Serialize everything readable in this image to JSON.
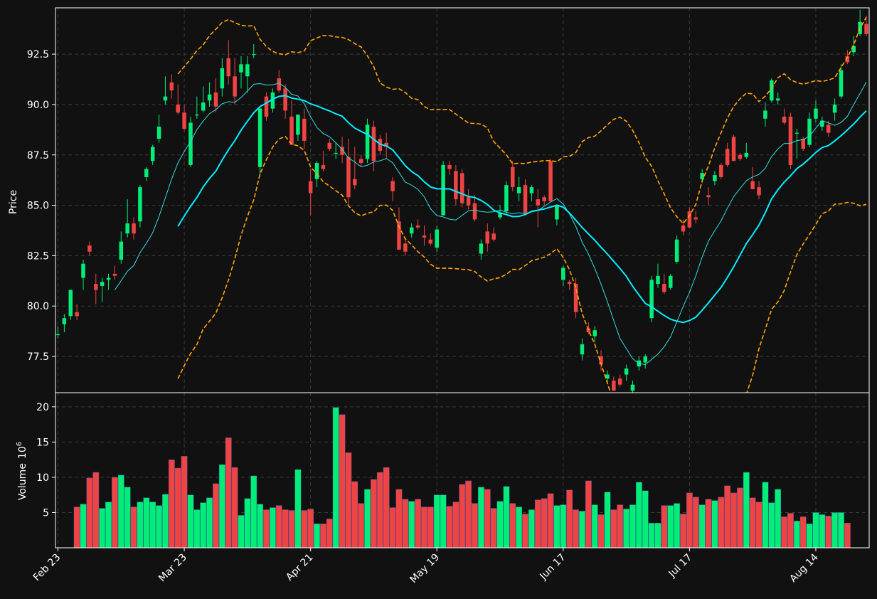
{
  "chart_data": {
    "type": "candlestick",
    "price_axis": {
      "label": "Price",
      "ylim": [
        75.7,
        94.8
      ],
      "ticks": [
        77.5,
        80.0,
        82.5,
        85.0,
        87.5,
        90.0,
        92.5
      ],
      "tick_labels": [
        "77.5",
        "80.0",
        "82.5",
        "85.0",
        "87.5",
        "90.0",
        "92.5"
      ]
    },
    "volume_axis": {
      "label": "Volume",
      "exponent": "6",
      "ylim": [
        0,
        22
      ],
      "ticks": [
        5,
        10,
        15,
        20
      ],
      "tick_labels": [
        "5",
        "10",
        "15",
        "20"
      ]
    },
    "x_axis": {
      "tick_labels": [
        "Feb 23",
        "Mar 23",
        "Apr 21",
        "May 19",
        "Jun 17",
        "Jul 17",
        "Aug 14"
      ],
      "tick_index": [
        0,
        20,
        40,
        60,
        80,
        100,
        120
      ]
    },
    "grid": true,
    "colors": {
      "background": "#111111",
      "up": "#00ee77",
      "down": "#ee4444",
      "sma_fast": "#33dddd",
      "sma_slow": "#00eeff",
      "bands": "#ffa500",
      "axis": "#ffffff",
      "grid": "#3a3a3a"
    },
    "candles_ohlc": [
      [
        78.6,
        79.0,
        78.4,
        78.6
      ],
      [
        79.1,
        79.6,
        78.7,
        79.4
      ],
      [
        79.5,
        80.8,
        79.3,
        80.8
      ],
      [
        79.7,
        80.1,
        79.3,
        79.5
      ],
      [
        81.4,
        82.3,
        80.8,
        82.1
      ],
      [
        83.0,
        83.2,
        82.5,
        82.7
      ],
      [
        81.1,
        81.6,
        80.1,
        80.8
      ],
      [
        81.0,
        81.4,
        80.2,
        81.2
      ],
      [
        81.3,
        81.6,
        80.8,
        81.4
      ],
      [
        81.6,
        82.0,
        81.3,
        81.5
      ],
      [
        82.3,
        83.7,
        82.1,
        83.2
      ],
      [
        83.6,
        85.3,
        83.4,
        84.1
      ],
      [
        84.1,
        84.4,
        83.3,
        83.6
      ],
      [
        84.2,
        86.0,
        83.9,
        85.9
      ],
      [
        86.4,
        86.9,
        86.2,
        86.8
      ],
      [
        87.2,
        88.0,
        87.0,
        87.9
      ],
      [
        88.3,
        89.5,
        88.1,
        88.9
      ],
      [
        90.2,
        91.4,
        90.0,
        90.4
      ],
      [
        91.1,
        91.5,
        90.3,
        90.7
      ],
      [
        90.0,
        91.0,
        89.5,
        89.6
      ],
      [
        89.6,
        90.0,
        88.7,
        88.8
      ],
      [
        87.0,
        89.4,
        86.9,
        89.1
      ],
      [
        89.5,
        90.4,
        89.3,
        89.5
      ],
      [
        89.7,
        90.9,
        89.6,
        90.1
      ],
      [
        90.2,
        91.1,
        89.9,
        90.5
      ],
      [
        90.6,
        91.3,
        89.6,
        89.9
      ],
      [
        90.8,
        92.3,
        90.4,
        91.8
      ],
      [
        92.3,
        93.2,
        91.0,
        91.4
      ],
      [
        91.4,
        92.3,
        90.0,
        90.4
      ],
      [
        91.6,
        92.4,
        90.8,
        92.0
      ],
      [
        91.4,
        92.4,
        90.6,
        92.0
      ],
      [
        92.5,
        93.0,
        92.3,
        92.5
      ],
      [
        86.9,
        89.9,
        86.5,
        89.8
      ],
      [
        90.4,
        90.6,
        89.2,
        89.4
      ],
      [
        89.8,
        90.8,
        89.6,
        90.6
      ],
      [
        91.3,
        91.7,
        90.6,
        90.7
      ],
      [
        90.8,
        91.0,
        89.3,
        89.7
      ],
      [
        89.4,
        90.2,
        88.5,
        88.0
      ],
      [
        88.5,
        89.5,
        88.2,
        89.5
      ],
      [
        89.3,
        89.8,
        87.8,
        88.2
      ],
      [
        86.2,
        86.8,
        84.5,
        85.6
      ],
      [
        86.3,
        87.2,
        85.9,
        87.1
      ],
      [
        87.0,
        87.7,
        86.7,
        86.8
      ],
      [
        88.1,
        88.3,
        87.7,
        87.8
      ],
      [
        87.6,
        88.1,
        87.3,
        87.6
      ],
      [
        87.9,
        88.4,
        87.1,
        87.5
      ],
      [
        87.4,
        88.3,
        85.0,
        85.4
      ],
      [
        86.3,
        87.9,
        85.8,
        86.0
      ],
      [
        87.3,
        87.5,
        86.9,
        87.1
      ],
      [
        87.3,
        89.3,
        87.1,
        89.0
      ],
      [
        88.9,
        89.2,
        86.7,
        87.2
      ],
      [
        88.3,
        88.5,
        87.5,
        87.7
      ],
      [
        88.1,
        88.6,
        87.3,
        87.9
      ],
      [
        86.2,
        86.4,
        85.2,
        85.7
      ],
      [
        84.2,
        84.9,
        82.8,
        82.8
      ],
      [
        83.1,
        83.4,
        82.5,
        82.7
      ],
      [
        83.6,
        84.1,
        83.4,
        83.9
      ],
      [
        84.0,
        84.3,
        83.8,
        83.9
      ],
      [
        83.5,
        84.0,
        83.0,
        83.4
      ],
      [
        83.3,
        83.6,
        83.0,
        83.1
      ],
      [
        82.9,
        84.0,
        82.7,
        83.8
      ],
      [
        84.5,
        87.2,
        84.5,
        87.0
      ],
      [
        87.0,
        87.2,
        86.5,
        86.8
      ],
      [
        86.7,
        87.0,
        85.0,
        85.3
      ],
      [
        86.6,
        86.8,
        84.9,
        85.1
      ],
      [
        85.4,
        85.8,
        84.8,
        85.0
      ],
      [
        85.1,
        85.5,
        84.2,
        84.3
      ],
      [
        82.6,
        83.3,
        82.3,
        83.1
      ],
      [
        83.7,
        84.1,
        82.7,
        83.1
      ],
      [
        83.6,
        83.9,
        83.2,
        83.3
      ],
      [
        84.4,
        85.0,
        84.3,
        84.6
      ],
      [
        84.7,
        86.2,
        84.5,
        86.0
      ],
      [
        86.9,
        87.2,
        85.7,
        85.9
      ],
      [
        85.6,
        86.4,
        85.2,
        85.9
      ],
      [
        86.0,
        86.3,
        84.5,
        84.6
      ],
      [
        85.6,
        86.0,
        85.2,
        85.9
      ],
      [
        85.3,
        85.8,
        83.9,
        85.0
      ],
      [
        85.4,
        85.5,
        85.0,
        85.2
      ],
      [
        87.2,
        87.3,
        85.2,
        85.2
      ],
      [
        84.3,
        85.0,
        84.0,
        85.0
      ],
      [
        81.3,
        82.0,
        81.0,
        81.9
      ],
      [
        81.2,
        81.3,
        80.8,
        81.1
      ],
      [
        81.1,
        81.4,
        79.4,
        79.7
      ],
      [
        77.6,
        78.4,
        77.3,
        78.1
      ],
      [
        78.9,
        79.2,
        78.6,
        78.7
      ],
      [
        78.5,
        79.0,
        78.2,
        78.8
      ],
      [
        77.5,
        77.8,
        76.8,
        77.1
      ],
      [
        76.4,
        76.8,
        76.2,
        76.6
      ],
      [
        76.3,
        76.5,
        75.8,
        75.8
      ],
      [
        76.4,
        76.6,
        76.0,
        76.1
      ],
      [
        76.6,
        77.1,
        76.3,
        76.9
      ],
      [
        75.8,
        76.3,
        75.7,
        76.1
      ],
      [
        77.0,
        77.5,
        76.8,
        77.3
      ],
      [
        77.2,
        77.6,
        76.9,
        77.5
      ],
      [
        79.4,
        81.5,
        79.2,
        81.3
      ],
      [
        81.1,
        82.1,
        80.9,
        81.5
      ],
      [
        81.1,
        81.6,
        80.6,
        80.7
      ],
      [
        80.9,
        81.6,
        80.8,
        81.5
      ],
      [
        82.2,
        83.5,
        82.1,
        83.3
      ],
      [
        84.0,
        84.3,
        83.5,
        83.7
      ],
      [
        84.7,
        84.9,
        83.9,
        83.9
      ],
      [
        84.4,
        84.7,
        84.1,
        84.3
      ],
      [
        86.3,
        86.8,
        86.1,
        86.6
      ],
      [
        85.5,
        85.9,
        85.0,
        85.4
      ],
      [
        86.2,
        86.7,
        86.0,
        86.5
      ],
      [
        87.0,
        87.1,
        86.3,
        86.4
      ],
      [
        87.8,
        88.1,
        86.9,
        87.0
      ],
      [
        88.4,
        88.5,
        87.2,
        87.2
      ],
      [
        87.5,
        87.6,
        87.2,
        87.3
      ],
      [
        87.4,
        88.1,
        87.3,
        87.6
      ],
      [
        86.2,
        86.9,
        85.9,
        85.8
      ],
      [
        85.9,
        86.2,
        85.3,
        85.5
      ],
      [
        89.3,
        90.1,
        88.9,
        89.7
      ],
      [
        90.2,
        91.3,
        90.1,
        91.2
      ],
      [
        90.2,
        90.6,
        90.0,
        90.3
      ],
      [
        89.4,
        89.8,
        89.0,
        89.1
      ],
      [
        89.4,
        89.6,
        86.8,
        87.0
      ],
      [
        88.6,
        88.8,
        87.3,
        88.6
      ],
      [
        88.3,
        88.4,
        87.7,
        87.8
      ],
      [
        88.0,
        89.6,
        87.9,
        89.3
      ],
      [
        89.3,
        90.2,
        89.1,
        89.8
      ],
      [
        88.9,
        89.4,
        88.7,
        89.2
      ],
      [
        89.0,
        89.2,
        88.4,
        88.6
      ],
      [
        89.6,
        90.3,
        89.2,
        90.0
      ],
      [
        90.4,
        92.0,
        90.3,
        91.7
      ],
      [
        92.4,
        92.7,
        92.0,
        92.1
      ],
      [
        92.6,
        93.4,
        92.4,
        92.9
      ],
      [
        93.5,
        94.7,
        93.4,
        94.1
      ],
      [
        94.0,
        94.4,
        93.4,
        93.5
      ]
    ],
    "volume_values": [
      null,
      null,
      null,
      5.8,
      6.2,
      9.9,
      10.7,
      5.6,
      6.5,
      10.0,
      10.3,
      8.6,
      5.8,
      6.5,
      7.1,
      6.5,
      6.0,
      7.6,
      12.5,
      11.3,
      13.0,
      7.5,
      5.4,
      6.4,
      7.1,
      9.1,
      11.8,
      15.6,
      11.4,
      4.6,
      7.0,
      10.2,
      6.2,
      5.4,
      5.7,
      6.0,
      5.4,
      5.3,
      11.1,
      5.3,
      5.5,
      3.4,
      3.4,
      4.1,
      19.9,
      18.9,
      13.5,
      9.4,
      6.3,
      8.3,
      9.7,
      10.7,
      11.4,
      5.7,
      8.3,
      6.9,
      6.6,
      6.9,
      5.8,
      5.8,
      7.5,
      7.5,
      5.9,
      6.5,
      9.0,
      9.5,
      6.3,
      8.6,
      8.3,
      5.6,
      6.6,
      8.7,
      6.3,
      5.8,
      4.8,
      5.4,
      6.8,
      7.0,
      7.7,
      6.0,
      6.1,
      8.2,
      5.4,
      5.2,
      9.5,
      6.1,
      4.7,
      7.9,
      5.4,
      6.1,
      5.5,
      6.1,
      9.3,
      8.1,
      3.5,
      3.5,
      6.0,
      6.0,
      6.3,
      4.8,
      7.8,
      7.2,
      6.1,
      6.9,
      6.7,
      7.2,
      8.8,
      7.8,
      8.5,
      10.7,
      7.1,
      6.5,
      9.3,
      6.4,
      8.3,
      4.4,
      4.9,
      3.8,
      4.4,
      3.4,
      5.0,
      4.7,
      4.5,
      5.0,
      5.0,
      3.5
    ]
  }
}
